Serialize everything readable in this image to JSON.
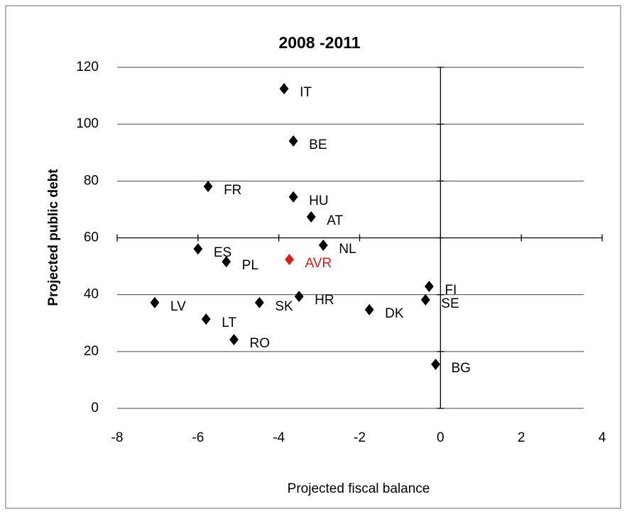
{
  "chart_data": {
    "type": "scatter",
    "title": "2008 -2011",
    "x_label": "Projected fiscal balance",
    "y_label": "Projected public debt",
    "point_labels": [
      "IT",
      "BE",
      "FR",
      "HU",
      "AT",
      "NL",
      "ES",
      "PL",
      "AVR",
      "FI",
      "SE",
      "HR",
      "SK",
      "LV",
      "DK",
      "LT",
      "RO",
      "BG"
    ],
    "x": [
      -3.87,
      -3.64,
      -5.75,
      -3.64,
      -3.2,
      -2.9,
      -6.0,
      -5.3,
      -3.74,
      -0.28,
      -0.37,
      -3.5,
      -4.48,
      -7.07,
      -1.76,
      -5.8,
      -5.11,
      -0.12
    ],
    "values": [
      112.5,
      94.1,
      78.1,
      74.4,
      67.4,
      57.4,
      56.1,
      51.6,
      52.4,
      42.9,
      38.2,
      39.4,
      37.2,
      37.2,
      34.7,
      31.4,
      24.2,
      15.5
    ],
    "colors": [
      "#000000",
      "#000000",
      "#000000",
      "#000000",
      "#000000",
      "#000000",
      "#000000",
      "#000000",
      "#d42020",
      "#000000",
      "#000000",
      "#000000",
      "#000000",
      "#000000",
      "#000000",
      "#000000",
      "#000000",
      "#000000"
    ],
    "xlim": [
      -8,
      4
    ],
    "ylim": [
      0,
      120
    ],
    "xticks": [
      -8,
      -6,
      -4,
      -2,
      0,
      2,
      4
    ],
    "yticks": [
      0,
      20,
      40,
      60,
      80,
      100,
      120
    ],
    "x_axis_crosses_y": 60,
    "y_axis_crosses_x": 0,
    "grid": true
  }
}
